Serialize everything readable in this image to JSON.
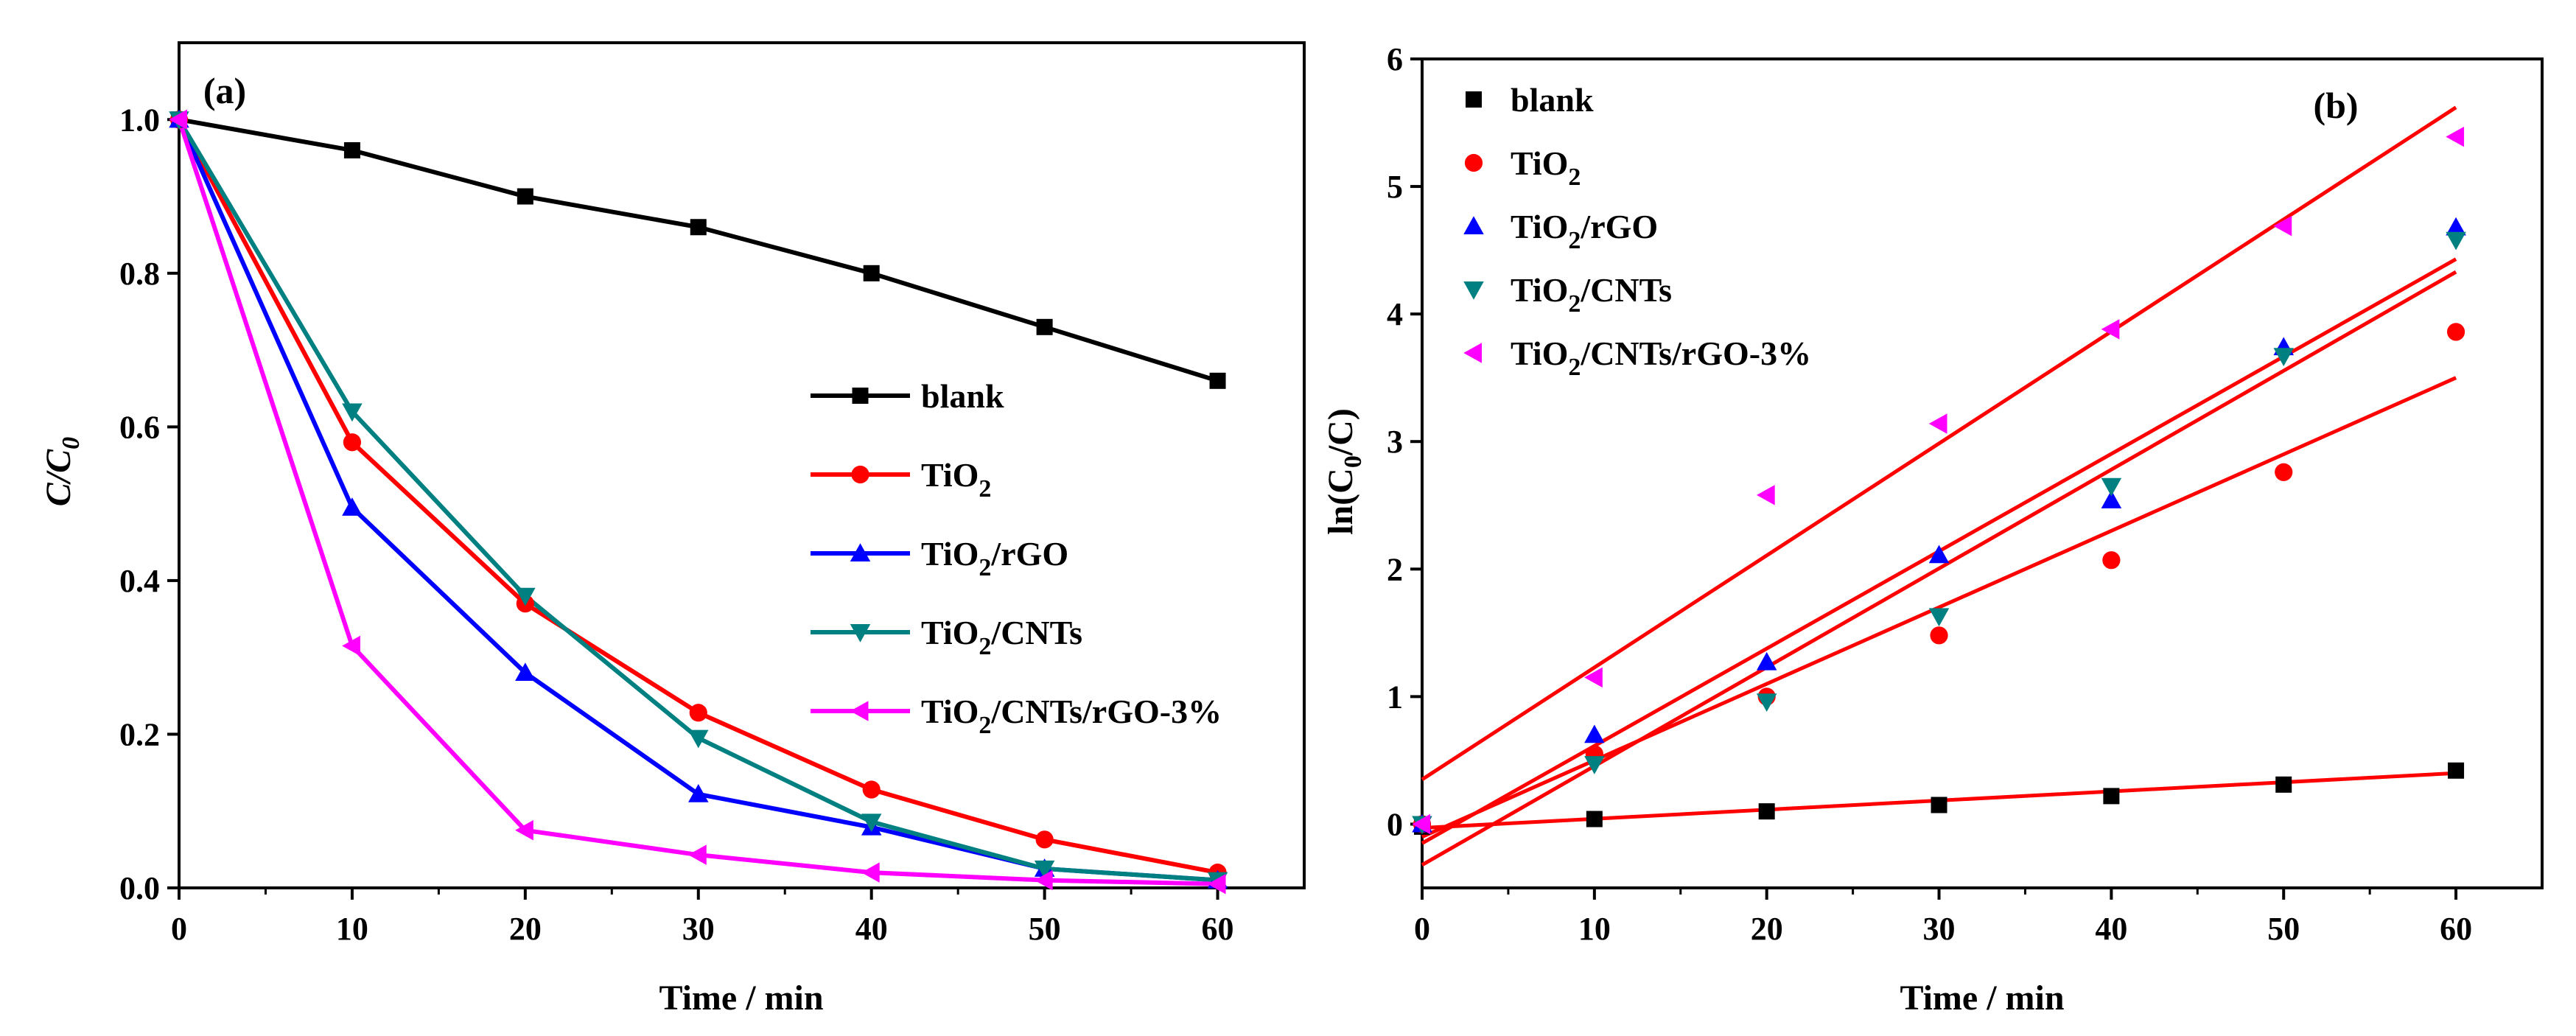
{
  "chart_data": [
    {
      "type": "line",
      "panel_label": "(a)",
      "xlabel": "Time / min",
      "ylabel": "C/C",
      "ylabel_sub": "0",
      "xlim": [
        0,
        65
      ],
      "ylim": [
        0,
        1.1
      ],
      "xticks": [
        0,
        10,
        20,
        30,
        40,
        50,
        60
      ],
      "yticks": [
        0.0,
        0.2,
        0.4,
        0.6,
        0.8,
        1.0
      ],
      "ytick_labels": [
        "0.0",
        "0.2",
        "0.4",
        "0.6",
        "0.8",
        "1.0"
      ],
      "legend_position": "center-right",
      "series": [
        {
          "name": "blank",
          "label_parts": [
            "blank"
          ],
          "color": "#000000",
          "marker": "square",
          "x": [
            0,
            10,
            20,
            30,
            40,
            50,
            60
          ],
          "y": [
            1.0,
            0.96,
            0.9,
            0.86,
            0.8,
            0.73,
            0.66
          ]
        },
        {
          "name": "TiO2",
          "label_parts": [
            "TiO",
            "2",
            ""
          ],
          "color": "#ff0000",
          "marker": "circle",
          "x": [
            0,
            10,
            20,
            30,
            40,
            50,
            60
          ],
          "y": [
            1.0,
            0.58,
            0.37,
            0.228,
            0.128,
            0.063,
            0.02
          ]
        },
        {
          "name": "TiO2/rGO",
          "label_parts": [
            "TiO",
            "2",
            "/rGO"
          ],
          "color": "#0000ff",
          "marker": "triangle-up",
          "x": [
            0,
            10,
            20,
            30,
            40,
            50,
            60
          ],
          "y": [
            1.0,
            0.495,
            0.28,
            0.122,
            0.079,
            0.025,
            0.01
          ]
        },
        {
          "name": "TiO2/CNTs",
          "label_parts": [
            "TiO",
            "2",
            "/CNTs"
          ],
          "color": "#008080",
          "marker": "triangle-down",
          "x": [
            0,
            10,
            20,
            30,
            40,
            50,
            60
          ],
          "y": [
            1.0,
            0.62,
            0.38,
            0.195,
            0.086,
            0.025,
            0.01
          ]
        },
        {
          "name": "TiO2/CNTs/rGO-3%",
          "label_parts": [
            "TiO",
            "2",
            "/CNTs/rGO-3%"
          ],
          "color": "#ff00ff",
          "marker": "triangle-left",
          "x": [
            0,
            10,
            20,
            30,
            40,
            50,
            60
          ],
          "y": [
            1.0,
            0.315,
            0.075,
            0.043,
            0.02,
            0.01,
            0.005
          ]
        }
      ]
    },
    {
      "type": "scatter",
      "panel_label": "(b)",
      "xlabel": "Time / min",
      "ylabel_parts": [
        "ln(C",
        "0",
        "/C)"
      ],
      "xlim": [
        0,
        65
      ],
      "ylim": [
        -0.5,
        6
      ],
      "xticks": [
        0,
        10,
        20,
        30,
        40,
        50,
        60
      ],
      "yticks": [
        0,
        1,
        2,
        3,
        4,
        5,
        6
      ],
      "ytick_labels": [
        "0",
        "1",
        "2",
        "3",
        "4",
        "5",
        "6"
      ],
      "legend_position": "top-left",
      "fit_line_color": "#ff0000",
      "series": [
        {
          "name": "blank",
          "label_parts": [
            "blank"
          ],
          "color": "#000000",
          "marker": "square",
          "x": [
            0,
            10,
            20,
            30,
            40,
            50,
            60
          ],
          "y": [
            -0.02,
            0.04,
            0.1,
            0.15,
            0.22,
            0.31,
            0.42
          ],
          "fit": {
            "x": [
              0,
              60
            ],
            "y": [
              -0.03,
              0.4
            ]
          }
        },
        {
          "name": "TiO2",
          "label_parts": [
            "TiO",
            "2",
            ""
          ],
          "color": "#ff0000",
          "marker": "circle",
          "x": [
            0,
            10,
            20,
            30,
            40,
            50,
            60
          ],
          "y": [
            0.0,
            0.55,
            1.0,
            1.48,
            2.07,
            2.76,
            3.86
          ],
          "fit": {
            "x": [
              0,
              60
            ],
            "y": [
              -0.1,
              3.5
            ]
          }
        },
        {
          "name": "TiO2/rGO",
          "label_parts": [
            "TiO",
            "2",
            "/rGO"
          ],
          "color": "#0000ff",
          "marker": "triangle-up",
          "x": [
            0,
            10,
            20,
            30,
            40,
            50,
            60
          ],
          "y": [
            0.0,
            0.7,
            1.27,
            2.11,
            2.54,
            3.74,
            4.68
          ],
          "fit": {
            "x": [
              0,
              60
            ],
            "y": [
              -0.15,
              4.43
            ]
          }
        },
        {
          "name": "TiO2/CNTs",
          "label_parts": [
            "TiO",
            "2",
            "/CNTs"
          ],
          "color": "#008080",
          "marker": "triangle-down",
          "x": [
            0,
            10,
            20,
            30,
            40,
            50,
            60
          ],
          "y": [
            0.0,
            0.47,
            0.96,
            1.63,
            2.65,
            3.67,
            4.58
          ],
          "fit": {
            "x": [
              0,
              60
            ],
            "y": [
              -0.32,
              4.33
            ]
          }
        },
        {
          "name": "TiO2/CNTs/rGO-3%",
          "label_parts": [
            "TiO",
            "2",
            "/CNTs/rGO-3%"
          ],
          "color": "#ff00ff",
          "marker": "triangle-left",
          "x": [
            0,
            10,
            20,
            30,
            40,
            50,
            60
          ],
          "y": [
            0.0,
            1.15,
            2.58,
            3.14,
            3.88,
            4.69,
            5.39
          ],
          "fit": {
            "x": [
              0,
              60
            ],
            "y": [
              0.35,
              5.62
            ]
          }
        }
      ]
    }
  ]
}
